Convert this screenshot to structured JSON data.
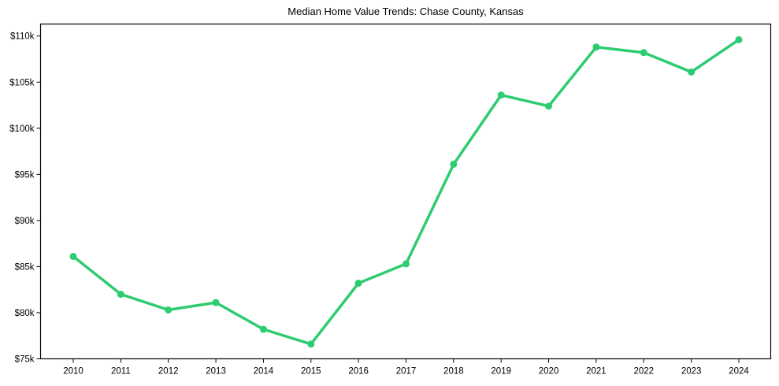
{
  "chart_data": {
    "type": "line",
    "title": "Median Home Value Trends: Chase County, Kansas",
    "xlabel": "",
    "ylabel": "",
    "categories": [
      "2010",
      "2011",
      "2012",
      "2013",
      "2014",
      "2015",
      "2016",
      "2017",
      "2018",
      "2019",
      "2020",
      "2021",
      "2022",
      "2023",
      "2024"
    ],
    "series": [
      {
        "name": "Median Home Value",
        "color": "#2ecc71",
        "values": [
          86100,
          82000,
          80300,
          81100,
          78200,
          76600,
          83200,
          85300,
          96100,
          103600,
          102400,
          108800,
          108200,
          106100,
          109600
        ]
      }
    ],
    "ylim": [
      75000,
      111300
    ],
    "yticks": [
      75000,
      80000,
      85000,
      90000,
      95000,
      100000,
      105000,
      110000
    ],
    "ytick_labels": [
      "$75k",
      "$80k",
      "$85k",
      "$90k",
      "$95k",
      "$100k",
      "$105k",
      "$110k"
    ],
    "grid": false,
    "legend": null,
    "markers": true
  }
}
